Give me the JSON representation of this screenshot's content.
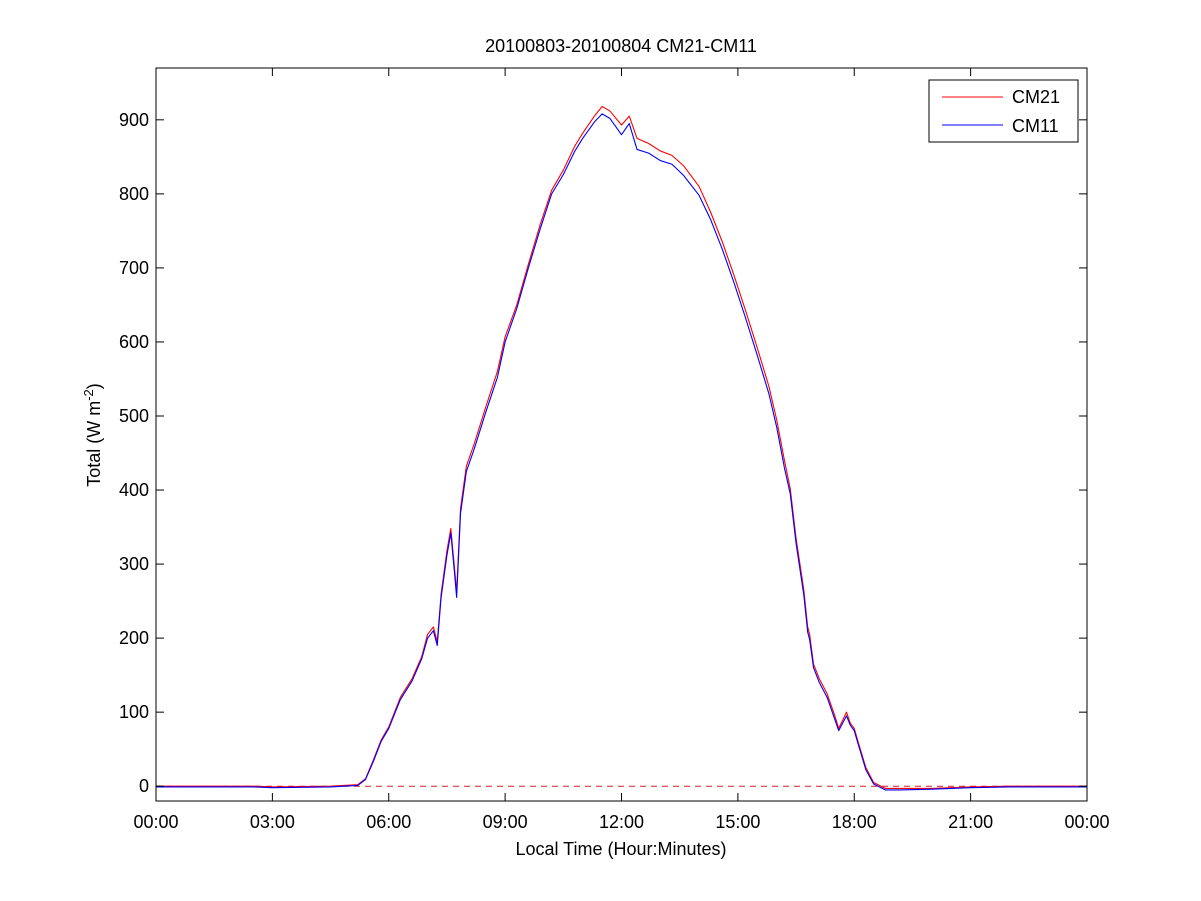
{
  "chart_data": {
    "type": "line",
    "title": "20100803-20100804 CM21-CM11",
    "xlabel": "Local Time (Hour:Minutes)",
    "ylabel": "Total (W m",
    "ylabel_unit_sup": "-2",
    "ylabel_close": ")",
    "xlim_hours": [
      0,
      24
    ],
    "ylim": [
      -20,
      970
    ],
    "x_ticks": [
      {
        "value": 0,
        "label": "00:00"
      },
      {
        "value": 3,
        "label": "03:00"
      },
      {
        "value": 6,
        "label": "06:00"
      },
      {
        "value": 9,
        "label": "09:00"
      },
      {
        "value": 12,
        "label": "12:00"
      },
      {
        "value": 15,
        "label": "15:00"
      },
      {
        "value": 18,
        "label": "18:00"
      },
      {
        "value": 21,
        "label": "21:00"
      },
      {
        "value": 24,
        "label": "00:00"
      }
    ],
    "y_ticks": [
      {
        "value": 0,
        "label": "0"
      },
      {
        "value": 100,
        "label": "100"
      },
      {
        "value": 200,
        "label": "200"
      },
      {
        "value": 300,
        "label": "300"
      },
      {
        "value": 400,
        "label": "400"
      },
      {
        "value": 500,
        "label": "500"
      },
      {
        "value": 600,
        "label": "600"
      },
      {
        "value": 700,
        "label": "700"
      },
      {
        "value": 800,
        "label": "800"
      },
      {
        "value": 900,
        "label": "900"
      }
    ],
    "grid": false,
    "legend_position": "top-right",
    "reference_line": {
      "y": 0,
      "color": "#cc2222",
      "style": "dashed"
    },
    "series": [
      {
        "name": "CM21",
        "color": "#ff0000",
        "x": [
          0.0,
          2.5,
          3.0,
          4.5,
          5.2,
          5.4,
          5.6,
          5.8,
          6.0,
          6.3,
          6.6,
          6.85,
          7.0,
          7.15,
          7.25,
          7.35,
          7.5,
          7.6,
          7.7,
          7.75,
          7.85,
          8.0,
          8.2,
          8.5,
          8.8,
          9.0,
          9.3,
          9.6,
          9.9,
          10.2,
          10.5,
          10.8,
          11.0,
          11.3,
          11.5,
          11.7,
          12.0,
          12.2,
          12.4,
          12.7,
          13.0,
          13.3,
          13.6,
          14.0,
          14.3,
          14.6,
          14.9,
          15.2,
          15.5,
          15.8,
          16.0,
          16.2,
          16.35,
          16.5,
          16.7,
          16.8,
          16.85,
          16.95,
          17.1,
          17.3,
          17.5,
          17.6,
          17.8,
          17.9,
          18.0,
          18.1,
          18.3,
          18.5,
          18.8,
          19.2,
          20.0,
          21.0,
          22.0,
          24.0
        ],
        "y": [
          0,
          0,
          -1,
          0,
          2,
          10,
          35,
          62,
          80,
          120,
          145,
          175,
          205,
          215,
          195,
          260,
          318,
          348,
          292,
          262,
          375,
          432,
          462,
          512,
          560,
          607,
          650,
          705,
          758,
          805,
          832,
          865,
          882,
          905,
          918,
          912,
          893,
          905,
          875,
          868,
          858,
          852,
          838,
          810,
          775,
          735,
          690,
          642,
          592,
          540,
          495,
          440,
          402,
          335,
          265,
          215,
          205,
          165,
          145,
          125,
          95,
          78,
          100,
          85,
          78,
          60,
          25,
          5,
          -3,
          -3,
          -3,
          -1,
          0,
          0
        ]
      },
      {
        "name": "CM11",
        "color": "#0000ff",
        "x": [
          0.0,
          2.5,
          3.0,
          4.5,
          5.2,
          5.4,
          5.6,
          5.8,
          6.0,
          6.3,
          6.6,
          6.85,
          7.0,
          7.15,
          7.25,
          7.35,
          7.5,
          7.6,
          7.7,
          7.75,
          7.85,
          8.0,
          8.2,
          8.5,
          8.8,
          9.0,
          9.3,
          9.6,
          9.9,
          10.2,
          10.5,
          10.8,
          11.0,
          11.3,
          11.5,
          11.7,
          12.0,
          12.2,
          12.4,
          12.7,
          13.0,
          13.3,
          13.6,
          14.0,
          14.3,
          14.6,
          14.9,
          15.2,
          15.5,
          15.8,
          16.0,
          16.2,
          16.35,
          16.5,
          16.7,
          16.8,
          16.85,
          16.95,
          17.1,
          17.3,
          17.5,
          17.6,
          17.8,
          17.9,
          18.0,
          18.1,
          18.3,
          18.5,
          18.8,
          19.2,
          20.0,
          21.0,
          22.0,
          24.0
        ],
        "y": [
          -1,
          -1,
          -2,
          -1,
          1,
          9,
          33,
          60,
          78,
          117,
          142,
          172,
          200,
          210,
          190,
          255,
          312,
          342,
          285,
          255,
          368,
          425,
          455,
          505,
          552,
          600,
          645,
          700,
          752,
          800,
          826,
          858,
          875,
          897,
          908,
          902,
          880,
          895,
          860,
          855,
          845,
          840,
          825,
          798,
          765,
          725,
          680,
          632,
          582,
          530,
          485,
          430,
          395,
          328,
          258,
          208,
          198,
          160,
          140,
          120,
          90,
          75,
          95,
          82,
          75,
          57,
          22,
          3,
          -5,
          -5,
          -4,
          -2,
          -1,
          -1
        ]
      }
    ]
  }
}
